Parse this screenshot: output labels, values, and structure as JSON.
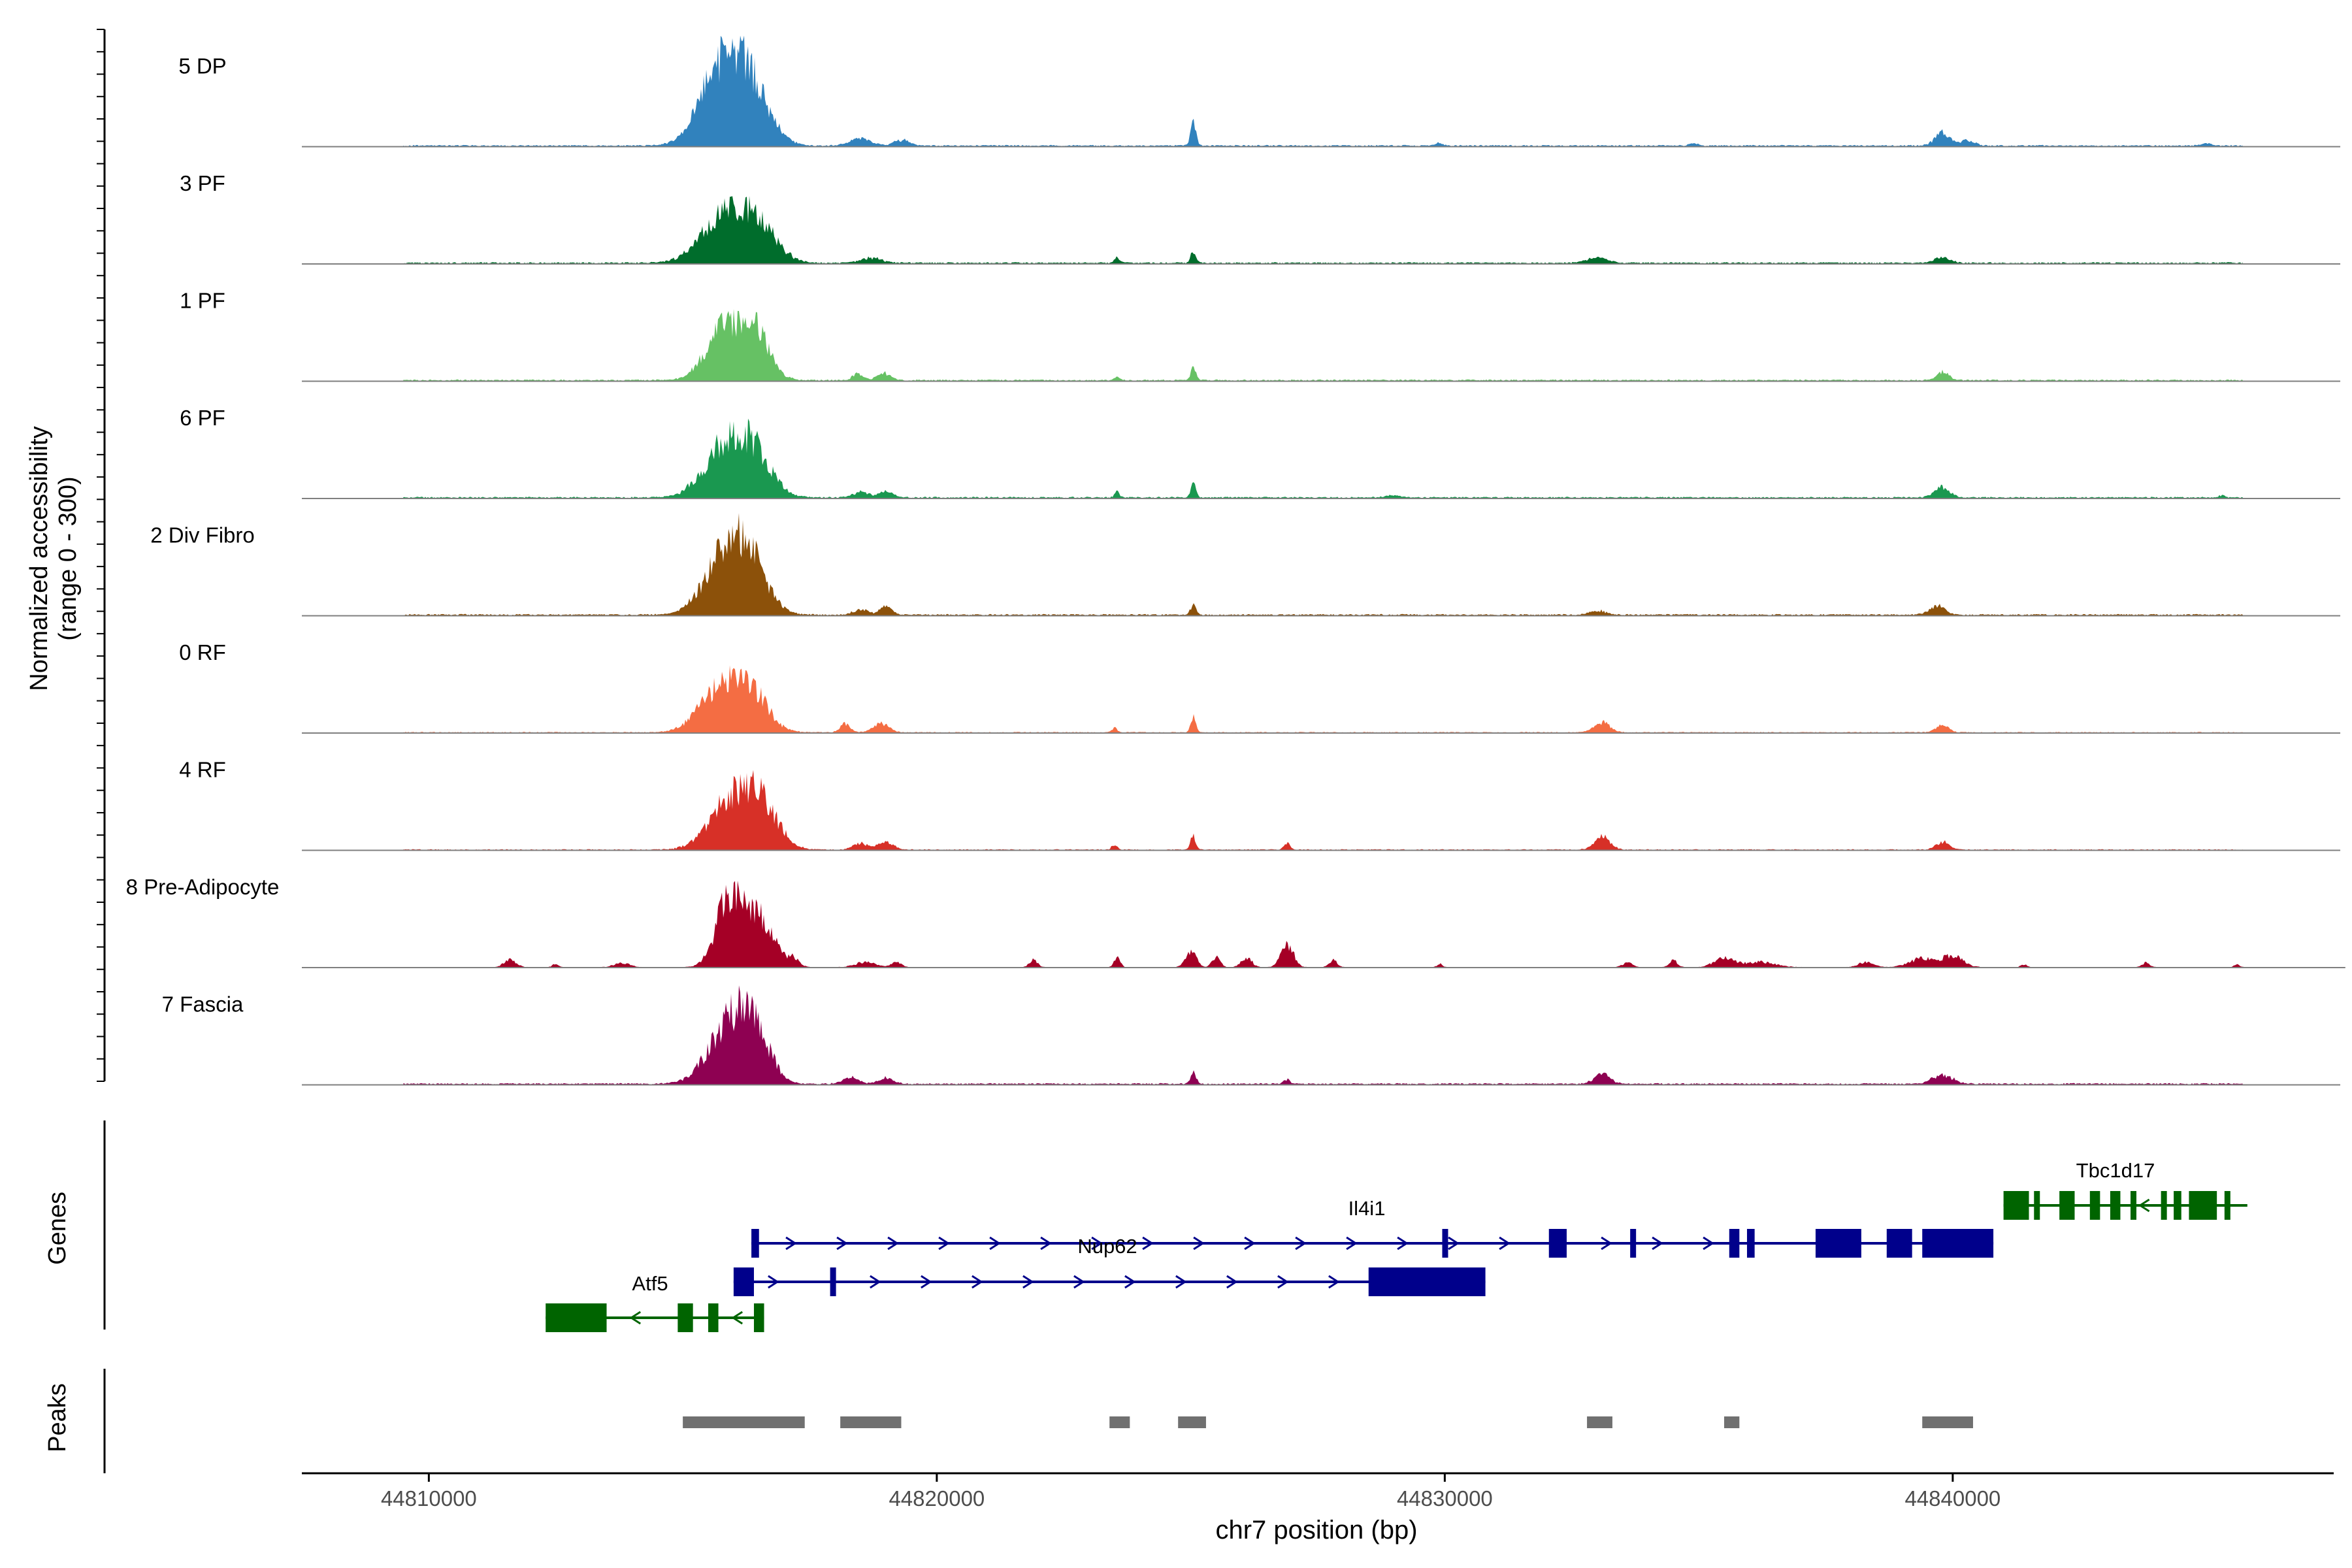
{
  "chart_data": {
    "type": "area",
    "title": "",
    "axes": {
      "y_label_line1": "Normalized accessibility",
      "y_label_line2": "(range 0 - 300)",
      "genes_label": "Genes",
      "peaks_label": "Peaks",
      "xlabel": "chr7 position (bp)",
      "xlim": [
        44807500,
        44847500
      ],
      "x_ticks": [
        "44810000",
        "44820000",
        "44830000",
        "44840000"
      ],
      "x_tick_values": [
        44810000,
        44820000,
        44830000,
        44840000
      ],
      "ylim": [
        0,
        300
      ]
    },
    "tracks": [
      {
        "name": "5 DP",
        "color": "#3182bd",
        "start": 44809500,
        "end": 44845700,
        "baseline": 3,
        "peaks": [
          [
            44815700,
            400,
            230
          ],
          [
            44816300,
            380,
            210
          ],
          [
            44818500,
            200,
            25
          ],
          [
            44819300,
            150,
            20
          ],
          [
            44825050,
            50,
            80
          ],
          [
            44829900,
            60,
            10
          ],
          [
            44834900,
            80,
            8
          ],
          [
            44839800,
            150,
            45
          ],
          [
            44840300,
            120,
            20
          ],
          [
            44845000,
            100,
            8
          ]
        ]
      },
      {
        "name": "3 PF",
        "color": "#006d2c",
        "start": 44809500,
        "end": 44845700,
        "baseline": 3,
        "peaks": [
          [
            44815800,
            450,
            150
          ],
          [
            44816450,
            380,
            120
          ],
          [
            44818700,
            200,
            18
          ],
          [
            44823550,
            50,
            18
          ],
          [
            44825050,
            50,
            45
          ],
          [
            44833000,
            200,
            18
          ],
          [
            44839800,
            150,
            20
          ]
        ]
      },
      {
        "name": "1 PF",
        "color": "#66c164",
        "start": 44809500,
        "end": 44845700,
        "baseline": 3,
        "peaks": [
          [
            44815800,
            350,
            170
          ],
          [
            44816400,
            300,
            160
          ],
          [
            44818450,
            100,
            22
          ],
          [
            44818950,
            130,
            25
          ],
          [
            44823550,
            50,
            15
          ],
          [
            44825050,
            50,
            40
          ],
          [
            44839800,
            120,
            28
          ]
        ]
      },
      {
        "name": "6 PF",
        "color": "#1a9850",
        "start": 44809500,
        "end": 44845700,
        "baseline": 3,
        "peaks": [
          [
            44815800,
            400,
            170
          ],
          [
            44816400,
            350,
            140
          ],
          [
            44818500,
            150,
            18
          ],
          [
            44819000,
            150,
            22
          ],
          [
            44823550,
            50,
            20
          ],
          [
            44825050,
            50,
            45
          ],
          [
            44829000,
            150,
            8
          ],
          [
            44839800,
            150,
            35
          ],
          [
            44845300,
            50,
            8
          ]
        ]
      },
      {
        "name": "2 Div Fibro",
        "color": "#8c510a",
        "start": 44809500,
        "end": 44845700,
        "baseline": 3,
        "peaks": [
          [
            44815800,
            400,
            180
          ],
          [
            44816300,
            350,
            165
          ],
          [
            44818500,
            150,
            18
          ],
          [
            44819000,
            120,
            28
          ],
          [
            44825050,
            50,
            40
          ],
          [
            44833000,
            150,
            15
          ],
          [
            44839700,
            150,
            30
          ]
        ]
      },
      {
        "name": "0 RF",
        "color": "#f46d43",
        "start": 44809500,
        "end": 44845700,
        "baseline": 2,
        "peaks": [
          [
            44815700,
            400,
            130
          ],
          [
            44816300,
            350,
            140
          ],
          [
            44818200,
            100,
            28
          ],
          [
            44818900,
            150,
            32
          ],
          [
            44823500,
            50,
            15
          ],
          [
            44825050,
            50,
            50
          ],
          [
            44833100,
            150,
            35
          ],
          [
            44839800,
            120,
            25
          ]
        ]
      },
      {
        "name": "4 RF",
        "color": "#d73027",
        "start": 44809500,
        "end": 44845700,
        "baseline": 2,
        "peaks": [
          [
            44815900,
            400,
            150
          ],
          [
            44816500,
            350,
            160
          ],
          [
            44818500,
            150,
            22
          ],
          [
            44819000,
            150,
            25
          ],
          [
            44823500,
            50,
            20
          ],
          [
            44825050,
            50,
            50
          ],
          [
            44826900,
            60,
            22
          ],
          [
            44833100,
            150,
            45
          ],
          [
            44839800,
            120,
            28
          ]
        ]
      },
      {
        "name": "8 Pre-Adipocyte",
        "color": "#a50026",
        "start": 44811300,
        "end": 44845800,
        "baseline": 1,
        "peaks": [
          [
            44811600,
            120,
            25
          ],
          [
            44812500,
            60,
            12
          ],
          [
            44813800,
            150,
            15
          ],
          [
            44815900,
            250,
            230
          ],
          [
            44816500,
            300,
            180
          ],
          [
            44817200,
            100,
            25
          ],
          [
            44818600,
            200,
            18
          ],
          [
            44819200,
            100,
            18
          ],
          [
            44821900,
            80,
            25
          ],
          [
            44823550,
            60,
            35
          ],
          [
            44825000,
            100,
            60
          ],
          [
            44825500,
            80,
            35
          ],
          [
            44826100,
            100,
            35
          ],
          [
            44826900,
            120,
            80
          ],
          [
            44827800,
            80,
            25
          ],
          [
            44829900,
            50,
            12
          ],
          [
            44833600,
            100,
            15
          ],
          [
            44834500,
            80,
            25
          ],
          [
            44835500,
            200,
            30
          ],
          [
            44836200,
            300,
            18
          ],
          [
            44838300,
            150,
            18
          ],
          [
            44839400,
            250,
            30
          ],
          [
            44840000,
            200,
            40
          ],
          [
            44841400,
            60,
            10
          ],
          [
            44843800,
            80,
            15
          ],
          [
            44845600,
            60,
            10
          ]
        ]
      },
      {
        "name": "7 Fascia",
        "color": "#8e0152",
        "start": 44809500,
        "end": 44845700,
        "baseline": 3,
        "peaks": [
          [
            44815900,
            400,
            190
          ],
          [
            44816400,
            300,
            170
          ],
          [
            44818300,
            150,
            22
          ],
          [
            44819000,
            150,
            20
          ],
          [
            44825050,
            50,
            45
          ],
          [
            44826900,
            60,
            15
          ],
          [
            44833100,
            150,
            40
          ],
          [
            44839800,
            200,
            30
          ]
        ]
      }
    ],
    "genes": [
      {
        "name": "Il4i1",
        "color": "#00008b",
        "strand": "+",
        "start": 44816350,
        "end": 44840800,
        "exons": [
          [
            44816350,
            44816500
          ],
          [
            44829950,
            44830000
          ],
          [
            44832050,
            44832400
          ],
          [
            44833650,
            44833750
          ],
          [
            44835600,
            44835800
          ],
          [
            44835950,
            44836100
          ],
          [
            44837300,
            44838200
          ],
          [
            44838700,
            44839200
          ],
          [
            44839400,
            44840800
          ]
        ]
      },
      {
        "name": "Nup62",
        "color": "#00008b",
        "strand": "+",
        "start": 44816000,
        "end": 44830800,
        "exons": [
          [
            44816000,
            44816400
          ],
          [
            44817900,
            44818000
          ],
          [
            44828500,
            44830800
          ]
        ]
      },
      {
        "name": "Atf5",
        "color": "#006400",
        "strand": "-",
        "start": 44812300,
        "end": 44816600,
        "exons": [
          [
            44812300,
            44813500
          ],
          [
            44814900,
            44815200
          ],
          [
            44815500,
            44815700
          ],
          [
            44816400,
            44816600
          ]
        ]
      },
      {
        "name": "Tbc1d17",
        "color": "#006400",
        "strand": "-",
        "start": 44841000,
        "end": 44845800,
        "exons": [
          [
            44841000,
            44841500
          ],
          [
            44841600,
            44841700
          ],
          [
            44842100,
            44842400
          ],
          [
            44842700,
            44842900
          ],
          [
            44843100,
            44843300
          ],
          [
            44843500,
            44843600
          ],
          [
            44844100,
            44844200
          ],
          [
            44844350,
            44844500
          ],
          [
            44844650,
            44845200
          ],
          [
            44845350,
            44845450
          ]
        ]
      }
    ],
    "peaks": [
      [
        44815000,
        44817400
      ],
      [
        44818100,
        44819300
      ],
      [
        44823400,
        44823800
      ],
      [
        44824750,
        44825300
      ],
      [
        44832800,
        44833300
      ],
      [
        44835500,
        44835800
      ],
      [
        44839400,
        44840400
      ]
    ]
  }
}
